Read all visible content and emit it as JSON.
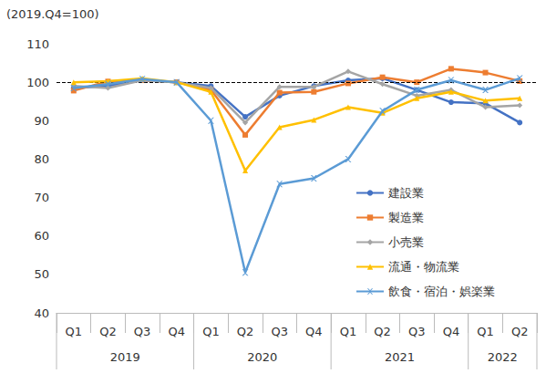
{
  "chart_data": {
    "type": "line",
    "y_label": "(2019.Q4=100)",
    "categories": [
      "Q1",
      "Q2",
      "Q3",
      "Q4",
      "Q1",
      "Q2",
      "Q3",
      "Q4",
      "Q1",
      "Q2",
      "Q3",
      "Q4",
      "Q1",
      "Q2"
    ],
    "category_groups": [
      {
        "label": "2019",
        "count": 4
      },
      {
        "label": "2020",
        "count": 4
      },
      {
        "label": "2021",
        "count": 4
      },
      {
        "label": "2022",
        "count": 2
      }
    ],
    "ylim": [
      40,
      110
    ],
    "yticks": [
      40,
      50,
      60,
      70,
      80,
      90,
      100,
      110
    ],
    "grid": false,
    "legend": "right",
    "hlines": [
      {
        "value": 100,
        "line_style": "dashed"
      }
    ],
    "series": [
      {
        "name": "建設業",
        "color": "#4472c4",
        "marker": "circle",
        "values": [
          98.5,
          99,
          100.5,
          100,
          99,
          91,
          96.5,
          99,
          100.5,
          101,
          98,
          94.8,
          94.5,
          89.5
        ]
      },
      {
        "name": "製造業",
        "color": "#ed7d31",
        "marker": "square",
        "values": [
          97.8,
          100.2,
          100.5,
          100,
          98,
          86.3,
          97.3,
          97.5,
          99.7,
          101.3,
          100,
          103.5,
          102.5,
          100.3
        ]
      },
      {
        "name": "小売業",
        "color": "#a5a5a5",
        "marker": "diamond",
        "values": [
          99,
          98.5,
          100.5,
          100,
          98.5,
          89.5,
          98.8,
          98.8,
          102.8,
          99.5,
          96.5,
          98,
          93.5,
          94
        ]
      },
      {
        "name": "流通・物流業",
        "color": "#ffc000",
        "marker": "triangle",
        "values": [
          100,
          100.3,
          101,
          100,
          97.5,
          77,
          88.3,
          90.2,
          93.5,
          92,
          95.8,
          97.5,
          95.2,
          95.8
        ]
      },
      {
        "name": "飲食・宿泊・娯楽業",
        "color": "#5b9bd5",
        "marker": "x",
        "values": [
          98.5,
          99.5,
          100.8,
          100,
          90,
          50.5,
          73.5,
          75,
          80,
          92.5,
          98,
          100.5,
          98,
          101
        ]
      }
    ]
  }
}
